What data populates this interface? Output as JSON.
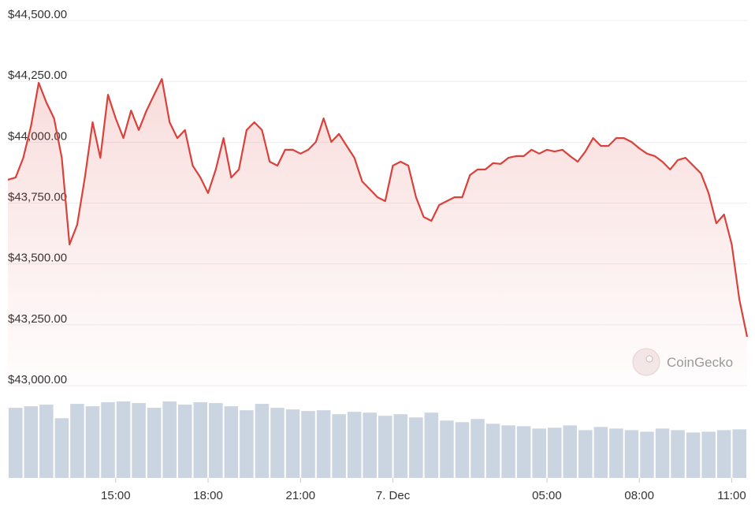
{
  "chart_data": [
    {
      "type": "line",
      "color": "#d9413a",
      "x": [
        11.5,
        11.75,
        12,
        12.25,
        12.5,
        12.75,
        13,
        13.25,
        13.5,
        13.75,
        14,
        14.25,
        14.5,
        14.75,
        15,
        15.25,
        15.5,
        15.75,
        16,
        16.25,
        16.5,
        16.75,
        17,
        17.25,
        17.5,
        17.75,
        18,
        18.25,
        18.5,
        18.75,
        19,
        19.25,
        19.5,
        19.75,
        20,
        20.25,
        20.5,
        20.75,
        21,
        21.25,
        21.5,
        21.75,
        22,
        22.25,
        22.5,
        22.75,
        23,
        23.25,
        23.5,
        23.75,
        24,
        24.25,
        24.5,
        24.75,
        25,
        25.25,
        25.5,
        25.75,
        26,
        26.25,
        26.5,
        26.75,
        27,
        27.25,
        27.5,
        27.75,
        28,
        28.25,
        28.5,
        28.75,
        29,
        29.25,
        29.5,
        29.75,
        30,
        30.25,
        30.5,
        30.75,
        31,
        31.25,
        31.5,
        31.75,
        32,
        32.25,
        32.5,
        32.75,
        33,
        33.25,
        33.5,
        33.75,
        34,
        34.25,
        34.5,
        34.75,
        35,
        35.25,
        35.5
      ],
      "values": [
        43846,
        43855,
        43936,
        44066,
        44244,
        44163,
        44098,
        43936,
        43580,
        43661,
        43855,
        44082,
        43936,
        44195,
        44098,
        44017,
        44130,
        44050,
        44130,
        44195,
        44260,
        44082,
        44017,
        44050,
        43904,
        43855,
        43791,
        43888,
        44017,
        43855,
        43888,
        44050,
        44082,
        44050,
        43920,
        43904,
        43969,
        43969,
        43953,
        43969,
        44001,
        44098,
        44001,
        44034,
        43985,
        43936,
        43839,
        43807,
        43774,
        43758,
        43904,
        43920,
        43904,
        43774,
        43693,
        43677,
        43742,
        43758,
        43774,
        43774,
        43865,
        43888,
        43888,
        43914,
        43911,
        43936,
        43943,
        43943,
        43969,
        43953,
        43969,
        43962,
        43969,
        43943,
        43920,
        43962,
        44017,
        43985,
        43985,
        44017,
        44017,
        44001,
        43975,
        43953,
        43943,
        43920,
        43888,
        43927,
        43936,
        43904,
        43872,
        43791,
        43667,
        43703,
        43580,
        43353,
        43201
      ],
      "xlim": [
        11.5,
        35.5
      ],
      "xticks": [
        {
          "value": 15,
          "label": "15:00"
        },
        {
          "value": 18,
          "label": "18:00"
        },
        {
          "value": 21,
          "label": "21:00"
        },
        {
          "value": 24,
          "label": "7. Dec"
        },
        {
          "value": 29,
          "label": "05:00"
        },
        {
          "value": 32,
          "label": "08:00"
        },
        {
          "value": 35,
          "label": "11:00"
        }
      ],
      "ylim": [
        43000,
        44500
      ],
      "yticks": [
        {
          "value": 44500,
          "label": "$44,500.00"
        },
        {
          "value": 44250,
          "label": "$44,250.00"
        },
        {
          "value": 44000,
          "label": "$44,000.00"
        },
        {
          "value": 43750,
          "label": "$43,750.00"
        },
        {
          "value": 43500,
          "label": "$43,500.00"
        },
        {
          "value": 43250,
          "label": "$43,250.00"
        },
        {
          "value": 43000,
          "label": "$43,000.00"
        }
      ],
      "grid": true,
      "credit": "CoinGecko"
    },
    {
      "type": "bar",
      "color": "#cbd5e1",
      "values": [
        88,
        90,
        92,
        75,
        93,
        90,
        95,
        96,
        94,
        88,
        96,
        92,
        95,
        94,
        90,
        85,
        93,
        88,
        86,
        84,
        85,
        80,
        83,
        82,
        78,
        80,
        76,
        82,
        72,
        70,
        74,
        68,
        66,
        65,
        62,
        63,
        66,
        60,
        64,
        62,
        60,
        58,
        62,
        60,
        57,
        58,
        60,
        61
      ],
      "ylim": [
        0,
        100
      ]
    }
  ]
}
